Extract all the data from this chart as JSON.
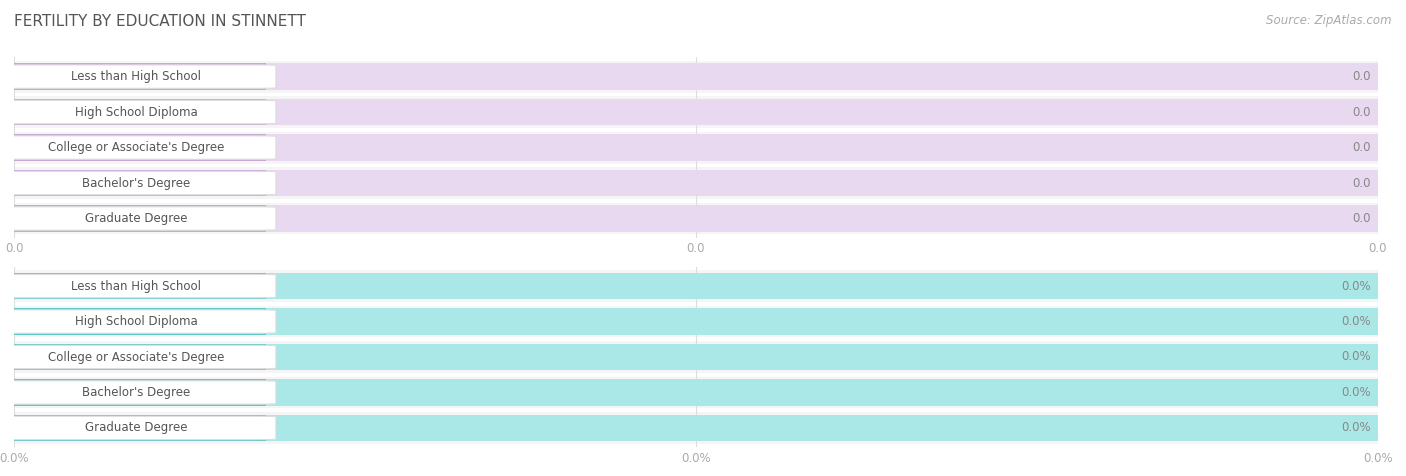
{
  "title": "FERTILITY BY EDUCATION IN STINNETT",
  "source": "Source: ZipAtlas.com",
  "categories": [
    "Less than High School",
    "High School Diploma",
    "College or Associate's Degree",
    "Bachelor's Degree",
    "Graduate Degree"
  ],
  "top_values": [
    0.0,
    0.0,
    0.0,
    0.0,
    0.0
  ],
  "bottom_values": [
    0.0,
    0.0,
    0.0,
    0.0,
    0.0
  ],
  "top_bar_color": "#c9a8d4",
  "top_bar_bg_color": "#e8d8f0",
  "bottom_bar_color": "#5ec8c8",
  "bottom_bar_bg_color": "#aae8e8",
  "top_value_suffix": "",
  "bottom_value_suffix": "%",
  "background_color": "#ffffff",
  "row_bg_color": "#f0f0f0",
  "pill_bg_color": "#ffffff",
  "pill_border_color": "#dddddd",
  "tick_label_color": "#aaaaaa",
  "title_color": "#555555",
  "source_color": "#aaaaaa",
  "bar_height": 0.75,
  "bar_label_fontsize": 8.5,
  "category_fontsize": 8.5,
  "title_fontsize": 11,
  "source_fontsize": 8.5,
  "top_axis_tick_labels": [
    "0.0",
    "0.0",
    "0.0"
  ],
  "bottom_axis_tick_labels": [
    "0.0%",
    "0.0%",
    "0.0%"
  ],
  "n_ticks": 3
}
